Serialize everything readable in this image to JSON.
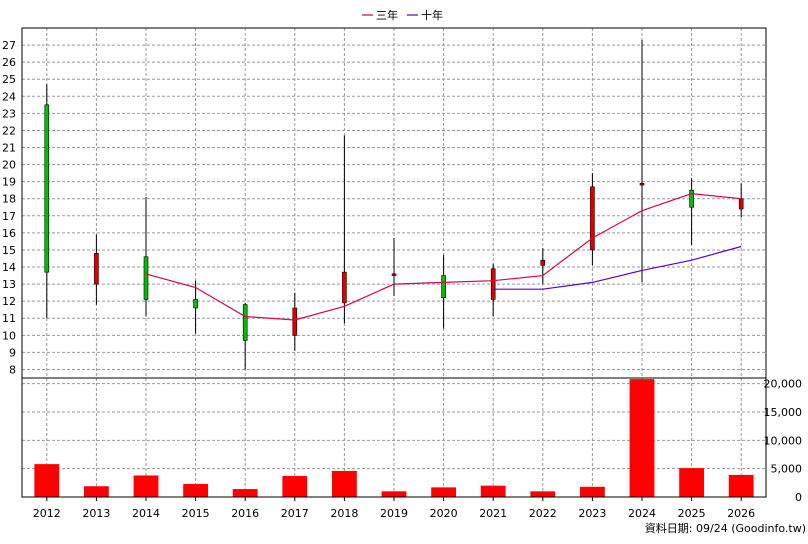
{
  "legend": {
    "ma3_label": "三年",
    "ma10_label": "十年"
  },
  "footer_note": "資料日期: 09/24  (Goodinfo.tw)",
  "colors": {
    "up": "#00c000",
    "down": "#e00000",
    "ma3": "#e0004c",
    "ma10": "#5a00d0",
    "volume": "#ff0000",
    "grid": "#999999"
  },
  "chart_data": [
    {
      "type": "candlestick",
      "categories": [
        "2012",
        "2013",
        "2014",
        "2015",
        "2016",
        "2017",
        "2018",
        "2019",
        "2020",
        "2021",
        "2022",
        "2023",
        "2024",
        "2025",
        "2026"
      ],
      "ohlc": [
        {
          "open": 13.7,
          "high": 24.7,
          "low": 11.0,
          "close": 23.5
        },
        {
          "open": 14.8,
          "high": 15.9,
          "low": 11.8,
          "close": 13.0
        },
        {
          "open": 12.1,
          "high": 18.1,
          "low": 11.1,
          "close": 14.6
        },
        {
          "open": 11.6,
          "high": 13.2,
          "low": 10.1,
          "close": 12.1
        },
        {
          "open": 9.7,
          "high": 11.9,
          "low": 8.0,
          "close": 11.8
        },
        {
          "open": 11.6,
          "high": 12.5,
          "low": 9.1,
          "close": 10.0
        },
        {
          "open": 13.7,
          "high": 21.7,
          "low": 10.7,
          "close": 11.9
        },
        {
          "open": 13.6,
          "high": 15.7,
          "low": 12.3,
          "close": 13.5
        },
        {
          "open": 12.2,
          "high": 14.7,
          "low": 10.4,
          "close": 13.5
        },
        {
          "open": 13.9,
          "high": 14.2,
          "low": 11.1,
          "close": 12.1
        },
        {
          "open": 14.4,
          "high": 15.1,
          "low": 13.0,
          "close": 14.1
        },
        {
          "open": 18.7,
          "high": 19.5,
          "low": 14.1,
          "close": 15.0
        },
        {
          "open": 18.9,
          "high": 27.3,
          "low": 13.1,
          "close": 18.8
        },
        {
          "open": 17.5,
          "high": 19.2,
          "low": 15.3,
          "close": 18.5
        },
        {
          "open": 18.0,
          "high": 18.9,
          "low": 16.9,
          "close": 17.4
        }
      ],
      "series": [
        {
          "name": "三年",
          "values": [
            null,
            null,
            13.6,
            12.8,
            11.1,
            10.9,
            11.7,
            13.0,
            13.1,
            13.2,
            13.5,
            15.7,
            17.3,
            18.3,
            18.0
          ]
        },
        {
          "name": "十年",
          "values": [
            null,
            null,
            null,
            null,
            null,
            null,
            null,
            null,
            null,
            12.7,
            12.7,
            13.1,
            13.8,
            14.4,
            15.2
          ]
        }
      ],
      "yticks": [
        8,
        9,
        10,
        11,
        12,
        13,
        14,
        15,
        16,
        17,
        18,
        19,
        20,
        21,
        22,
        23,
        24,
        25,
        26,
        27
      ],
      "ylim": [
        7.5,
        28
      ],
      "grid": true,
      "legend_position": "top-center"
    },
    {
      "type": "bar",
      "categories": [
        "2012",
        "2013",
        "2014",
        "2015",
        "2016",
        "2017",
        "2018",
        "2019",
        "2020",
        "2021",
        "2022",
        "2023",
        "2024",
        "2025",
        "2026"
      ],
      "values": [
        5800,
        1900,
        3800,
        2300,
        1400,
        3700,
        4600,
        1000,
        1700,
        2000,
        1000,
        1800,
        20800,
        5100,
        3900
      ],
      "yticks": [
        0,
        5000,
        10000,
        15000,
        20000
      ],
      "ytick_labels": [
        "0",
        "5,000",
        "10,000",
        "15,000",
        "20,000"
      ],
      "ylim": [
        0,
        21000
      ],
      "grid": true
    }
  ]
}
